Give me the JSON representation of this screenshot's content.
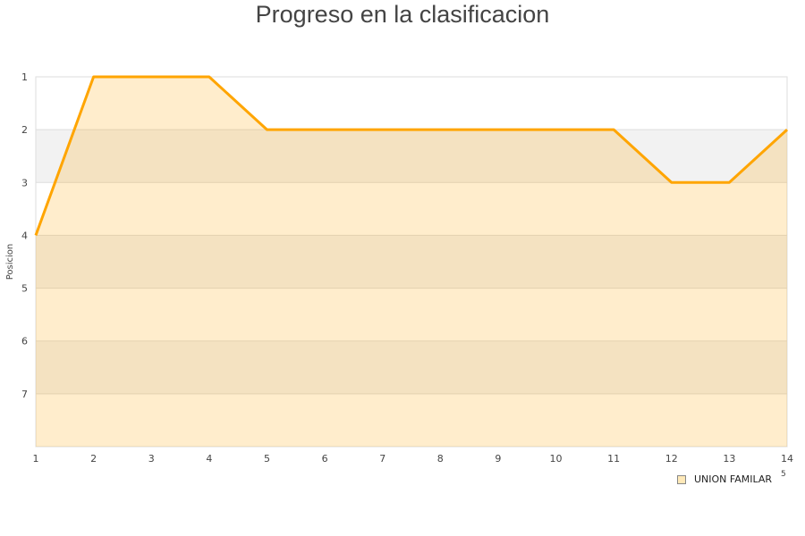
{
  "chart_data": {
    "type": "area",
    "title": "Progreso en la clasificacion",
    "xlabel": "",
    "ylabel": "Posicion",
    "x": [
      1,
      2,
      3,
      4,
      5,
      6,
      7,
      8,
      9,
      10,
      11,
      12,
      13,
      14
    ],
    "series": [
      {
        "name": "UNION FAMILAR",
        "values": [
          4,
          1,
          1,
          1,
          2,
          2,
          2,
          2,
          2,
          2,
          2,
          3,
          3,
          2
        ],
        "color": "#ffa500"
      }
    ],
    "xlim": [
      1,
      14
    ],
    "ylim": [
      1,
      8
    ],
    "y_reversed": true,
    "yticks": [
      1,
      2,
      3,
      4,
      5,
      6,
      7
    ],
    "grid": true,
    "alternating_bands": true,
    "band_color": "#f2f2f2",
    "legend_placement": "bottom-right",
    "stray_label": "5"
  }
}
